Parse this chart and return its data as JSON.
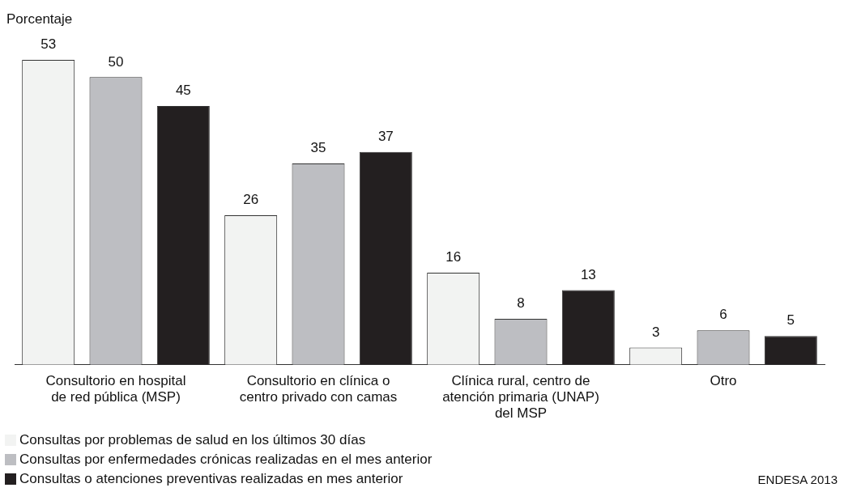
{
  "chart_data": {
    "type": "bar",
    "categories": [
      "Consultorio en hospital de red pública (MSP)",
      "Consultorio en clínica o centro privado con camas",
      "Clínica rural, centro de atención primaria (UNAP) del MSP",
      "Otro"
    ],
    "series": [
      {
        "name": "Consultas por problemas de salud en los últimos 30 días",
        "color": "#f2f3f2",
        "values": [
          53,
          26,
          16,
          3
        ]
      },
      {
        "name": "Consultas por enfermedades crónicas realizadas en el mes anterior",
        "color": "#bdbec2",
        "values": [
          50,
          35,
          8,
          6
        ]
      },
      {
        "name": "Consultas o atenciones preventivas realizadas en mes anterior",
        "color": "#231f20",
        "values": [
          45,
          37,
          13,
          5
        ]
      }
    ],
    "data_labels": true,
    "legend": "bottom left",
    "annotations": [
      "Porcentaje",
      "ENDESA 2013"
    ]
  }
}
